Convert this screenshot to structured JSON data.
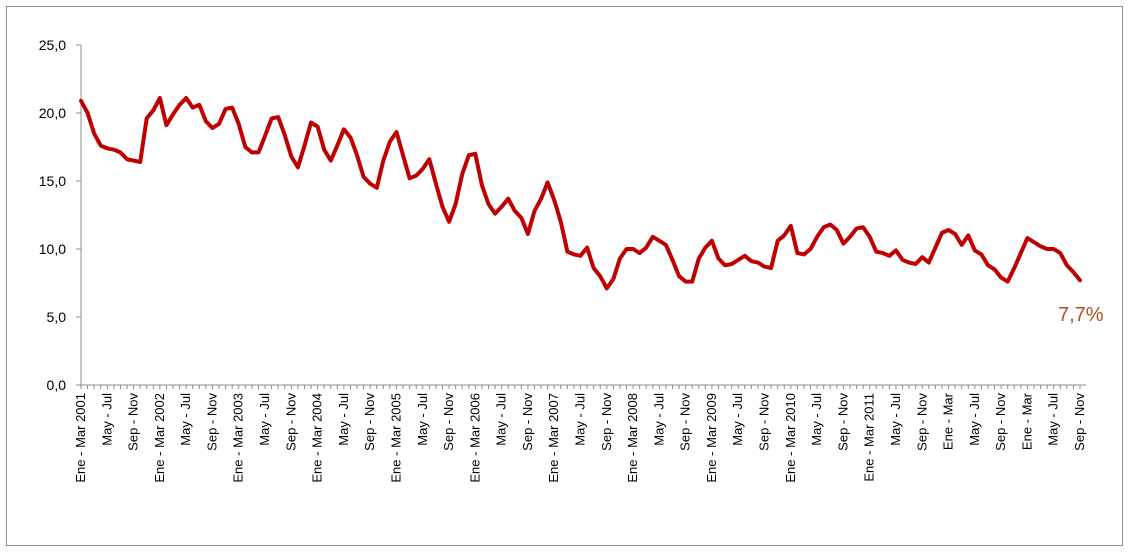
{
  "chart_data": {
    "type": "line",
    "title": "",
    "xlabel": "",
    "ylabel": "",
    "ylim": [
      0,
      25
    ],
    "yticks": [
      "0,0",
      "5,0",
      "10,0",
      "15,0",
      "20,0",
      "25,0"
    ],
    "grid": false,
    "line_color": "#c00000",
    "end_label": "7,7%",
    "end_label_color": "#b5501c",
    "x_tick_labels": [
      "Ene - Mar 2001",
      "May - Jul",
      "Sep - Nov",
      "Ene - Mar 2002",
      "May - Jul",
      "Sep - Nov",
      "Ene - Mar 2003",
      "May - Jul",
      "Sep - Nov",
      "Ene - Mar 2004",
      "May - Jul",
      "Sep - Nov",
      "Ene - Mar 2005",
      "May - Jul",
      "Sep - Nov",
      "Ene - Mar 2006",
      "May - Jul",
      "Sep - Nov",
      "Ene - Mar 2007",
      "May - Jul",
      "Sep - Nov",
      "Ene - Mar 2008",
      "May - Jul",
      "Sep - Nov",
      "Ene - Mar 2009",
      "May - Jul",
      "Sep - Nov",
      "Ene - Mar 2010",
      "May - Jul",
      "Sep - Nov",
      "Ene - Mar 2011",
      "May - Jul",
      "Sep - Nov",
      "Ene - Mar",
      "May - Jul",
      "Sep - Nov",
      "Ene - Mar",
      "May - Jul",
      "Sep - Nov"
    ],
    "series": [
      {
        "values": [
          20.9,
          20.0,
          18.5,
          17.6,
          17.4,
          17.3,
          17.1,
          16.6,
          16.5,
          16.4,
          19.6,
          20.2,
          21.1,
          19.1,
          19.9,
          20.6,
          21.1,
          20.4,
          20.6,
          19.4,
          18.9,
          19.2,
          20.3,
          20.4,
          19.2,
          17.5,
          17.1,
          17.1,
          18.3,
          19.6,
          19.7,
          18.4,
          16.8,
          16.0,
          17.6,
          19.3,
          19.0,
          17.3,
          16.5,
          17.6,
          18.8,
          18.2,
          16.9,
          15.3,
          14.8,
          14.5,
          16.5,
          17.9,
          18.6,
          16.9,
          15.2,
          15.4,
          15.9,
          16.6,
          14.8,
          13.1,
          12.0,
          13.3,
          15.5,
          16.9,
          17.0,
          14.7,
          13.3,
          12.6,
          13.1,
          13.7,
          12.8,
          12.3,
          11.1,
          12.8,
          13.7,
          14.9,
          13.6,
          12.0,
          9.8,
          9.6,
          9.5,
          10.1,
          8.6,
          8.0,
          7.1,
          7.8,
          9.3,
          10.0,
          10.0,
          9.7,
          10.1,
          10.9,
          10.6,
          10.3,
          9.2,
          8.0,
          7.6,
          7.6,
          9.3,
          10.1,
          10.6,
          9.3,
          8.8,
          8.9,
          9.2,
          9.5,
          9.1,
          9.0,
          8.7,
          8.6,
          10.6,
          11.0,
          11.7,
          9.7,
          9.6,
          10.0,
          10.9,
          11.6,
          11.8,
          11.4,
          10.4,
          10.9,
          11.5,
          11.6,
          10.9,
          9.8,
          9.7,
          9.5,
          9.9,
          9.2,
          9.0,
          8.9,
          9.4,
          9.0,
          10.1,
          11.2,
          11.4,
          11.1,
          10.3,
          11.0,
          9.9,
          9.6,
          8.8,
          8.5,
          7.9,
          7.6,
          8.6,
          9.7,
          10.8,
          10.5,
          10.2,
          10.0,
          10.0,
          9.7,
          8.8,
          8.3,
          7.7
        ]
      }
    ]
  }
}
